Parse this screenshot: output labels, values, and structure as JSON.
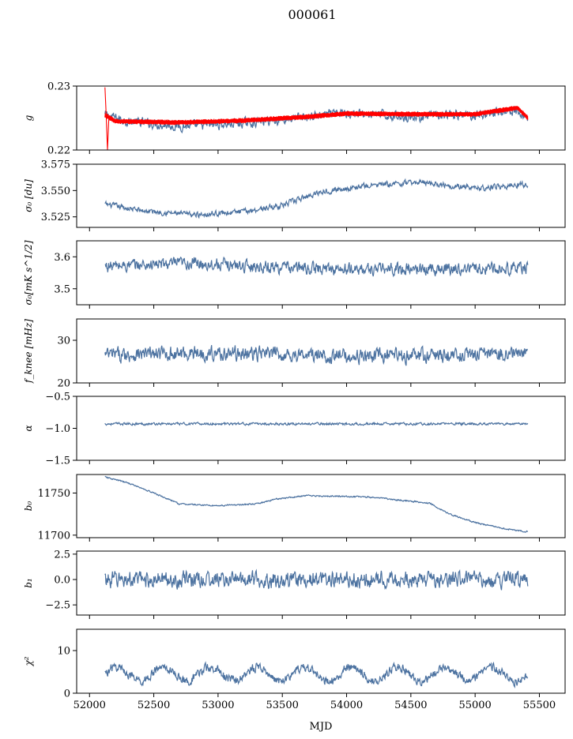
{
  "figure": {
    "title": "000061",
    "xlabel": "MJD",
    "xlim": [
      51900,
      55700
    ],
    "xticks": [
      52000,
      52500,
      53000,
      53500,
      54000,
      54500,
      55000,
      55500
    ],
    "data_range": [
      52120,
      55410
    ]
  },
  "colors": {
    "series": "#4c72a0",
    "fit": "#ff0000",
    "axis": "#000000"
  },
  "chart_data": [
    {
      "type": "line",
      "id": "g",
      "ylabel": "g",
      "ylim": [
        0.22,
        0.23
      ],
      "yticks": [
        0.22,
        0.23
      ],
      "series": [
        {
          "kind": "noisy",
          "base": [
            [
              52120,
              0.2255
            ],
            [
              52300,
              0.2245
            ],
            [
              52700,
              0.2237
            ],
            [
              53200,
              0.2242
            ],
            [
              53700,
              0.2252
            ],
            [
              54000,
              0.2258
            ],
            [
              54500,
              0.2252
            ],
            [
              55000,
              0.2255
            ],
            [
              55300,
              0.2262
            ],
            [
              55410,
              0.225
            ]
          ],
          "noise": 0.0007,
          "color": "#4c72a0"
        },
        {
          "kind": "band",
          "base": [
            [
              52120,
              0.2255
            ],
            [
              52200,
              0.2245
            ],
            [
              52700,
              0.2243
            ],
            [
              53200,
              0.2246
            ],
            [
              53700,
              0.2252
            ],
            [
              54000,
              0.2257
            ],
            [
              54500,
              0.2256
            ],
            [
              55000,
              0.2256
            ],
            [
              55330,
              0.2266
            ],
            [
              55410,
              0.225
            ]
          ],
          "halfwidth": 0.0004,
          "spike": {
            "x": 52120,
            "y": 0.2298
          },
          "dip": {
            "x": 52140,
            "y": 0.22
          },
          "color": "#ff0000"
        }
      ]
    },
    {
      "type": "line",
      "id": "sigma_du",
      "ylabel": "σ₀ [du]",
      "ylim": [
        3.515,
        3.575
      ],
      "yticks": [
        3.525,
        3.55,
        3.575
      ],
      "series": [
        {
          "kind": "noisy",
          "base": [
            [
              52120,
              3.537
            ],
            [
              52400,
              3.531
            ],
            [
              52800,
              3.527
            ],
            [
              53200,
              3.53
            ],
            [
              53500,
              3.536
            ],
            [
              53800,
              3.549
            ],
            [
              54200,
              3.555
            ],
            [
              54600,
              3.558
            ],
            [
              55000,
              3.552
            ],
            [
              55410,
              3.556
            ]
          ],
          "noise": 0.0025,
          "color": "#4c72a0"
        }
      ]
    },
    {
      "type": "line",
      "id": "sigma_mk",
      "ylabel": "σ₀[mK s^1/2]",
      "ylim": [
        3.45,
        3.65
      ],
      "yticks": [
        3.5,
        3.6
      ],
      "series": [
        {
          "kind": "noisy",
          "base": [
            [
              52120,
              3.57
            ],
            [
              52800,
              3.58
            ],
            [
              53300,
              3.57
            ],
            [
              54000,
              3.56
            ],
            [
              55410,
              3.565
            ]
          ],
          "noise": 0.018,
          "color": "#4c72a0"
        }
      ]
    },
    {
      "type": "line",
      "id": "fknee",
      "ylabel": "f_knee [mHz]",
      "ylim": [
        20,
        35
      ],
      "yticks": [
        20,
        30
      ],
      "series": [
        {
          "kind": "noisy",
          "base": [
            [
              52120,
              26.5
            ],
            [
              52800,
              27.0
            ],
            [
              53400,
              26.8
            ],
            [
              54000,
              26.2
            ],
            [
              54800,
              26.5
            ],
            [
              55410,
              27.0
            ]
          ],
          "noise": 1.6,
          "color": "#4c72a0"
        }
      ]
    },
    {
      "type": "line",
      "id": "alpha",
      "ylabel": "α",
      "ylim": [
        -1.5,
        -0.5
      ],
      "yticks": [
        -1.5,
        -1.0,
        -0.5
      ],
      "series": [
        {
          "kind": "noisy",
          "base": [
            [
              52120,
              -0.93
            ],
            [
              55410,
              -0.93
            ]
          ],
          "noise": 0.018,
          "color": "#4c72a0"
        }
      ]
    },
    {
      "type": "line",
      "id": "b0",
      "ylabel": "b₀",
      "ylim": [
        11697,
        11772
      ],
      "yticks": [
        11700,
        11750
      ],
      "series": [
        {
          "kind": "noisy",
          "base": [
            [
              52120,
              11769
            ],
            [
              52300,
              11762
            ],
            [
              52500,
              11750
            ],
            [
              52700,
              11737
            ],
            [
              53000,
              11735
            ],
            [
              53300,
              11737
            ],
            [
              53450,
              11743
            ],
            [
              53700,
              11747
            ],
            [
              54200,
              11745
            ],
            [
              54650,
              11738
            ],
            [
              54800,
              11725
            ],
            [
              55000,
              11715
            ],
            [
              55250,
              11707
            ],
            [
              55410,
              11704
            ]
          ],
          "noise": 0.8,
          "color": "#4c72a0"
        }
      ]
    },
    {
      "type": "line",
      "id": "b1",
      "ylabel": "b₁",
      "ylim": [
        -3.5,
        2.8
      ],
      "yticks": [
        -2.5,
        0.0,
        2.5
      ],
      "series": [
        {
          "kind": "noisy",
          "base": [
            [
              52120,
              0.0
            ],
            [
              55410,
              0.0
            ]
          ],
          "noise": 0.75,
          "color": "#4c72a0"
        }
      ]
    },
    {
      "type": "line",
      "id": "chi2",
      "ylabel": "χ²",
      "ylim": [
        0,
        15
      ],
      "yticks": [
        0,
        10
      ],
      "series": [
        {
          "kind": "noisy",
          "base": [
            [
              52120,
              4.5
            ],
            [
              55410,
              4.5
            ]
          ],
          "wave": {
            "amp": 1.6,
            "period": 365
          },
          "noise": 1.0,
          "color": "#4c72a0"
        }
      ]
    }
  ]
}
